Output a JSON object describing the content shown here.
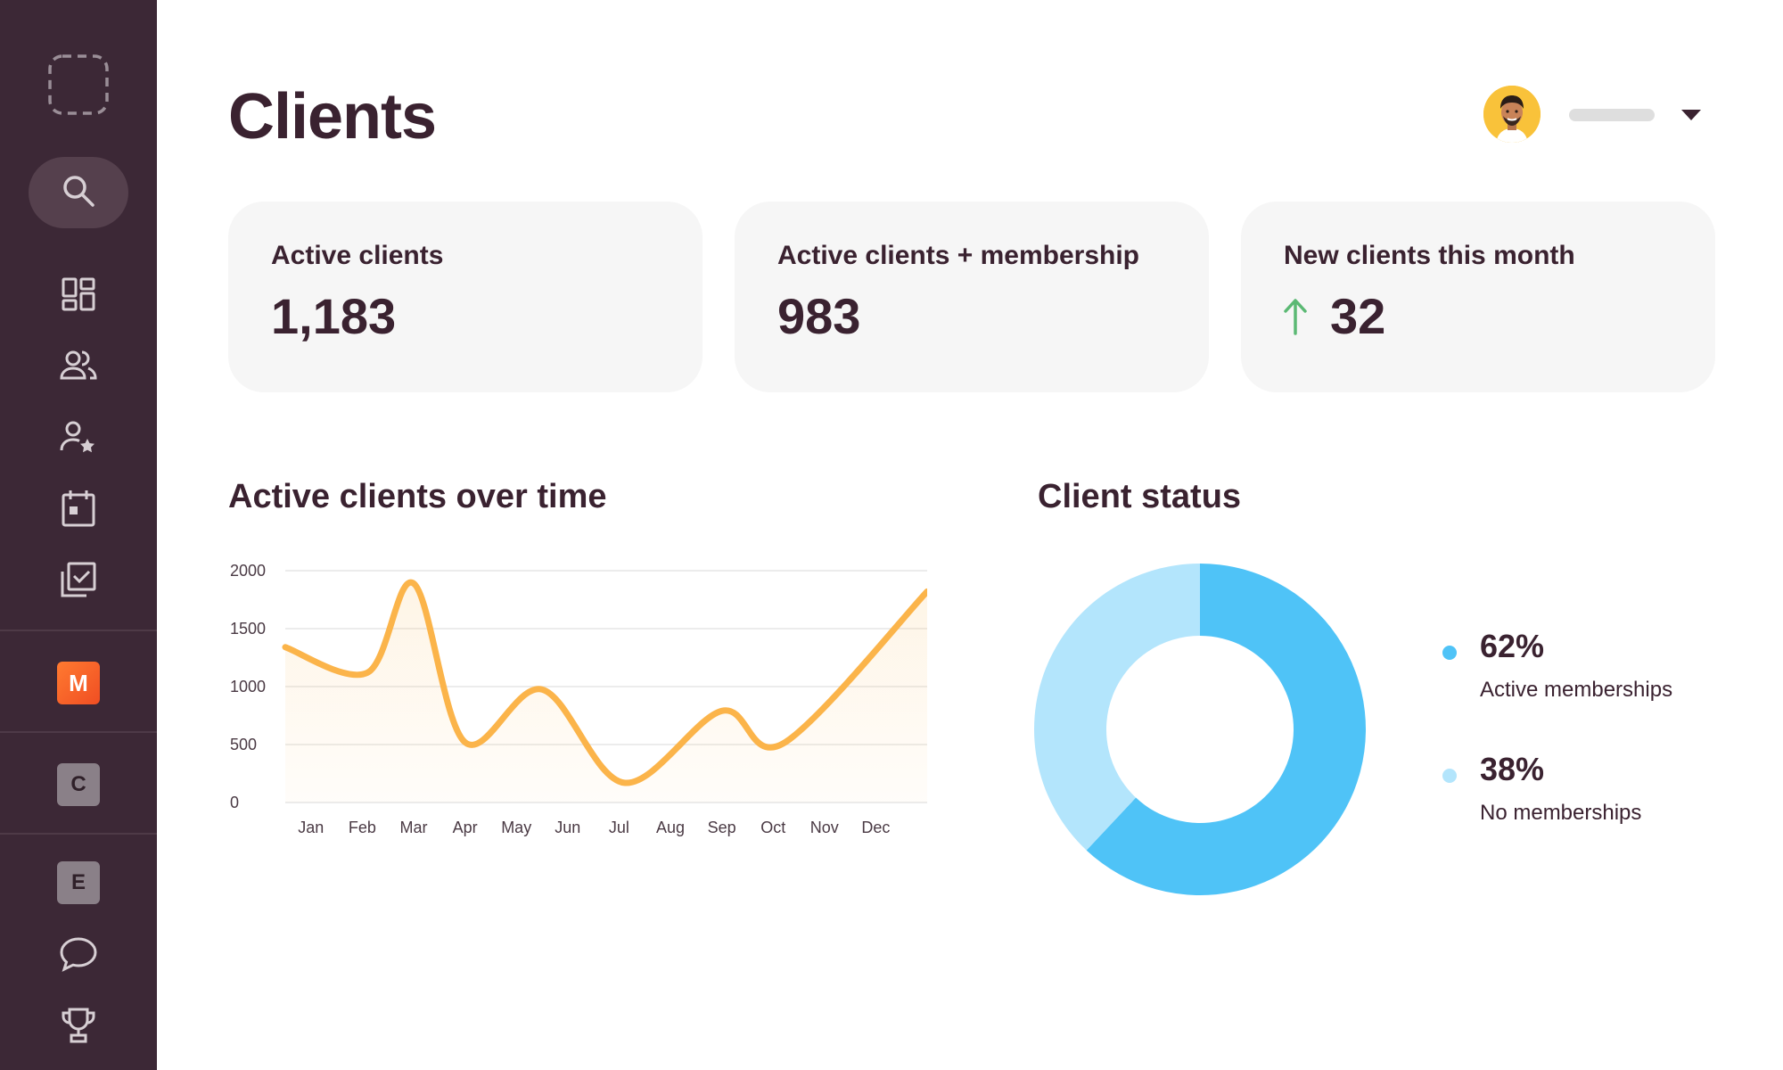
{
  "page": {
    "title": "Clients"
  },
  "sidebar": {
    "items": [
      {
        "icon": "logo-placeholder-icon"
      },
      {
        "icon": "search-icon"
      },
      {
        "icon": "dashboard-icon"
      },
      {
        "icon": "users-icon"
      },
      {
        "icon": "user-star-icon"
      },
      {
        "icon": "calendar-icon"
      },
      {
        "icon": "checklist-icon"
      }
    ],
    "workspaces": [
      {
        "letter": "M",
        "color": "#f4602a"
      },
      {
        "letter": "C",
        "color": "#8a8088"
      },
      {
        "letter": "E",
        "color": "#8a8088"
      }
    ],
    "bottom_items": [
      {
        "icon": "chat-icon"
      },
      {
        "icon": "trophy-icon"
      }
    ]
  },
  "user": {
    "avatar_icon": "user-avatar",
    "name": ""
  },
  "stats": [
    {
      "label": "Active clients",
      "value": "1,183"
    },
    {
      "label": "Active clients + membership",
      "value": "983"
    },
    {
      "label": "New clients this month",
      "value": "32",
      "trend": "up",
      "trend_color": "#5bb974"
    }
  ],
  "chart_title": "Active clients over time",
  "status_title": "Client status",
  "chart_data": [
    {
      "type": "area",
      "title": "Active clients over time",
      "categories": [
        "Jan",
        "Feb",
        "Mar",
        "Apr",
        "May",
        "Jun",
        "Jul",
        "Aug",
        "Sep",
        "Oct",
        "Nov",
        "Dec"
      ],
      "x": [
        0.5,
        1.5,
        2.5,
        3.5,
        4.5,
        5.5,
        6.5,
        7.5,
        8.5,
        9.5,
        10.5,
        11.5
      ],
      "y_ticks": [
        0,
        500,
        1000,
        1500,
        2000
      ],
      "ylim": [
        0,
        2000
      ],
      "xlim": [
        0,
        12.5
      ],
      "series": [
        {
          "x": [
            0,
            1.6,
            2.5,
            3.5,
            5,
            6.6,
            8.5,
            9.7,
            12.5
          ],
          "values": [
            1340,
            1120,
            1890,
            520,
            975,
            170,
            790,
            510,
            1820
          ]
        }
      ],
      "color": "#fbb44a",
      "grid": true
    },
    {
      "type": "pie",
      "title": "Client status",
      "labels": [
        "Active memberships",
        "No memberships"
      ],
      "values": [
        62,
        38
      ],
      "display": [
        "62%",
        "38%"
      ],
      "colors": [
        "#4fc3f7",
        "#b3e5fc"
      ],
      "donut": true
    }
  ]
}
